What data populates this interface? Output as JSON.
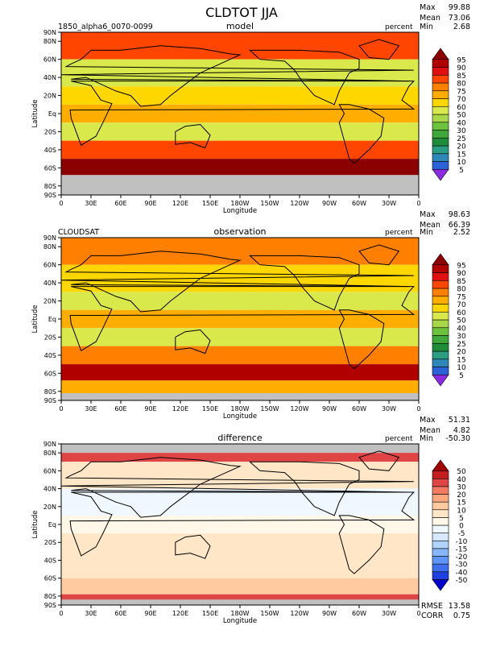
{
  "title": "CLDTOT JJA",
  "chart_data": [
    {
      "type": "heatmap",
      "panel_title": "model",
      "case_label": "1850_alpha6_0070-0099",
      "units": "percent",
      "stats": {
        "max_label": "Max",
        "max": "99.88",
        "mean_label": "Mean",
        "mean": "73.06",
        "min_label": "Min",
        "min": "2.68"
      },
      "xlabel": "Longitude",
      "ylabel": "Latitude",
      "xticks": [
        "0",
        "30E",
        "60E",
        "90E",
        "120E",
        "150E",
        "180W",
        "150W",
        "120W",
        "90W",
        "60W",
        "30W",
        "0"
      ],
      "yticks": [
        "90N",
        "80N",
        "60N",
        "40N",
        "20N",
        "Eq",
        "20S",
        "40S",
        "60S",
        "80S",
        "90S"
      ],
      "ytick_values": [
        90,
        80,
        60,
        40,
        20,
        0,
        -20,
        -40,
        -60,
        -80,
        -90
      ],
      "colorbar": {
        "levels": [
          "5",
          "10",
          "15",
          "20",
          "25",
          "30",
          "40",
          "50",
          "60",
          "70",
          "75",
          "80",
          "85",
          "90",
          "95"
        ],
        "colors": [
          "#8a2be2",
          "#2b63d6",
          "#2f87b8",
          "#2a9d83",
          "#1f8c3a",
          "#3fa83a",
          "#6cc23c",
          "#a8d84a",
          "#d9e84a",
          "#ffd700",
          "#ffae00",
          "#ff7f00",
          "#ff4500",
          "#e01010",
          "#b00000",
          "#8b0000"
        ]
      },
      "regions": [
        {
          "lat": [
            60,
            90
          ],
          "value": 82
        },
        {
          "lat": [
            30,
            60
          ],
          "value": 55
        },
        {
          "lat": [
            10,
            30
          ],
          "value": 60
        },
        {
          "lat": [
            -10,
            10
          ],
          "value": 72
        },
        {
          "lat": [
            -30,
            -10
          ],
          "value": 55
        },
        {
          "lat": [
            -50,
            -30
          ],
          "value": 80
        },
        {
          "lat": [
            -68,
            -50
          ],
          "value": 95
        },
        {
          "lat": [
            -90,
            -68
          ],
          "value": -1
        }
      ]
    },
    {
      "type": "heatmap",
      "panel_title": "observation",
      "case_label": "CLOUDSAT",
      "units": "percent",
      "stats": {
        "max_label": "Max",
        "max": "98.63",
        "mean_label": "Mean",
        "mean": "66.39",
        "min_label": "Min",
        "min": "2.52"
      },
      "xlabel": "Longitude",
      "ylabel": "Latitude",
      "xticks": [
        "0",
        "30E",
        "60E",
        "90E",
        "120E",
        "150E",
        "180W",
        "150W",
        "120W",
        "90W",
        "60W",
        "30W",
        "0"
      ],
      "yticks": [
        "90N",
        "80N",
        "60N",
        "40N",
        "20N",
        "Eq",
        "20S",
        "40S",
        "60S",
        "80S",
        "90S"
      ],
      "ytick_values": [
        90,
        80,
        60,
        40,
        20,
        0,
        -20,
        -40,
        -60,
        -80,
        -90
      ],
      "colorbar": {
        "levels": [
          "5",
          "10",
          "15",
          "20",
          "25",
          "30",
          "40",
          "50",
          "60",
          "70",
          "75",
          "80",
          "85",
          "90",
          "95"
        ],
        "colors": [
          "#8a2be2",
          "#2b63d6",
          "#2f87b8",
          "#2a9d83",
          "#1f8c3a",
          "#3fa83a",
          "#6cc23c",
          "#a8d84a",
          "#d9e84a",
          "#ffd700",
          "#ffae00",
          "#ff7f00",
          "#ff4500",
          "#e01010",
          "#b00000",
          "#8b0000"
        ]
      },
      "regions": [
        {
          "lat": [
            60,
            90
          ],
          "value": 78
        },
        {
          "lat": [
            30,
            60
          ],
          "value": 62
        },
        {
          "lat": [
            10,
            30
          ],
          "value": 55
        },
        {
          "lat": [
            -10,
            10
          ],
          "value": 70
        },
        {
          "lat": [
            -30,
            -10
          ],
          "value": 52
        },
        {
          "lat": [
            -50,
            -30
          ],
          "value": 78
        },
        {
          "lat": [
            -68,
            -50
          ],
          "value": 90
        },
        {
          "lat": [
            -82,
            -68
          ],
          "value": 70
        },
        {
          "lat": [
            -90,
            -82
          ],
          "value": -1
        }
      ]
    },
    {
      "type": "heatmap",
      "panel_title": "difference",
      "case_label": "",
      "units": "percent",
      "stats": {
        "max_label": "Max",
        "max": "51.31",
        "mean_label": "Mean",
        "mean": "4.82",
        "min_label": "Min",
        "min": "-50.30"
      },
      "extra": {
        "rmse_label": "RMSE",
        "rmse": "13.58",
        "corr_label": "CORR",
        "corr": "0.75"
      },
      "xlabel": "Longitude",
      "ylabel": "Latitude",
      "xticks": [
        "0",
        "30E",
        "60E",
        "90E",
        "120E",
        "150E",
        "180W",
        "150W",
        "120W",
        "90W",
        "60W",
        "30W",
        "0"
      ],
      "yticks": [
        "90N",
        "80N",
        "60N",
        "40N",
        "20N",
        "Eq",
        "20S",
        "40S",
        "60S",
        "80S",
        "90S"
      ],
      "ytick_values": [
        90,
        80,
        60,
        40,
        20,
        0,
        -20,
        -40,
        -60,
        -80,
        -90
      ],
      "colorbar": {
        "levels": [
          "-50",
          "-40",
          "-30",
          "-20",
          "-15",
          "-10",
          "-5",
          "0",
          "5",
          "10",
          "15",
          "20",
          "30",
          "40",
          "50"
        ],
        "colors": [
          "#0000cc",
          "#1f3fe0",
          "#3f6fee",
          "#5f95f7",
          "#86b7fb",
          "#b0d4fd",
          "#d6e9fe",
          "#f0f8ff",
          "#fff8e8",
          "#ffe6c7",
          "#ffcaa0",
          "#ffa880",
          "#f57a62",
          "#e04545",
          "#c41f1f",
          "#a00000"
        ]
      },
      "regions": [
        {
          "lat": [
            80,
            90
          ],
          "value": -99
        },
        {
          "lat": [
            70,
            80
          ],
          "value": 35
        },
        {
          "lat": [
            40,
            70
          ],
          "value": 8
        },
        {
          "lat": [
            10,
            40
          ],
          "value": -5
        },
        {
          "lat": [
            -10,
            10
          ],
          "value": 3
        },
        {
          "lat": [
            -60,
            -10
          ],
          "value": 5
        },
        {
          "lat": [
            -78,
            -60
          ],
          "value": 10
        },
        {
          "lat": [
            -84,
            -78
          ],
          "value": 35
        },
        {
          "lat": [
            -90,
            -84
          ],
          "value": -99
        }
      ]
    }
  ]
}
